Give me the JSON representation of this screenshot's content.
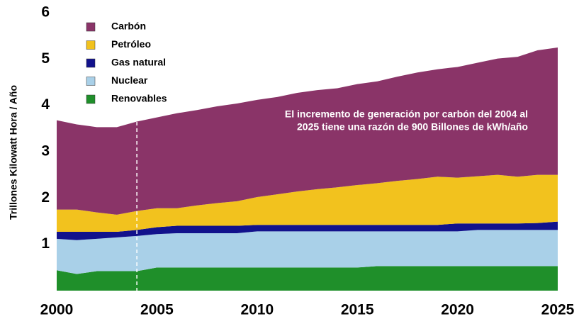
{
  "chart_data": {
    "type": "stacked_area",
    "y_label": "Trillones Kilowatt Hora / Año",
    "annotation": [
      "El incremento de generación por carbón del 2004 al",
      "2025 tiene una razón de 900 Billones de kWh/año"
    ],
    "reference_line_x": 2004,
    "x": [
      2000,
      2001,
      2002,
      2003,
      2004,
      2005,
      2006,
      2007,
      2008,
      2009,
      2010,
      2011,
      2012,
      2013,
      2014,
      2015,
      2016,
      2017,
      2018,
      2019,
      2020,
      2021,
      2022,
      2023,
      2024,
      2025
    ],
    "series": [
      {
        "name": "Carbón",
        "color": "#8a3468",
        "values": [
          1.93,
          1.84,
          1.84,
          1.89,
          1.93,
          1.96,
          2.05,
          2.06,
          2.09,
          2.11,
          2.1,
          2.1,
          2.13,
          2.14,
          2.14,
          2.18,
          2.2,
          2.25,
          2.3,
          2.32,
          2.39,
          2.45,
          2.51,
          2.59,
          2.69,
          2.75
        ]
      },
      {
        "name": "Petróleo",
        "color": "#f2c21e",
        "values": [
          0.48,
          0.48,
          0.42,
          0.37,
          0.41,
          0.41,
          0.38,
          0.44,
          0.49,
          0.53,
          0.6,
          0.66,
          0.72,
          0.77,
          0.81,
          0.86,
          0.9,
          0.95,
          0.99,
          1.04,
          0.99,
          1.02,
          1.05,
          1.01,
          1.04,
          1.01
        ]
      },
      {
        "name": "Gas natural",
        "color": "#12128c",
        "values": [
          0.15,
          0.18,
          0.15,
          0.12,
          0.13,
          0.15,
          0.16,
          0.16,
          0.16,
          0.16,
          0.14,
          0.14,
          0.14,
          0.14,
          0.14,
          0.14,
          0.14,
          0.14,
          0.14,
          0.14,
          0.17,
          0.14,
          0.14,
          0.14,
          0.15,
          0.18
        ]
      },
      {
        "name": "Nuclear",
        "color": "#a9d0e8",
        "values": [
          0.68,
          0.73,
          0.7,
          0.73,
          0.76,
          0.72,
          0.74,
          0.74,
          0.74,
          0.74,
          0.78,
          0.78,
          0.78,
          0.78,
          0.78,
          0.78,
          0.75,
          0.75,
          0.75,
          0.75,
          0.75,
          0.78,
          0.78,
          0.78,
          0.78,
          0.78
        ]
      },
      {
        "name": "Renovables",
        "color": "#1f8f2a",
        "values": [
          0.44,
          0.36,
          0.42,
          0.42,
          0.42,
          0.5,
          0.5,
          0.5,
          0.5,
          0.5,
          0.5,
          0.5,
          0.5,
          0.5,
          0.5,
          0.5,
          0.53,
          0.53,
          0.53,
          0.53,
          0.53,
          0.53,
          0.53,
          0.53,
          0.53,
          0.53
        ]
      }
    ],
    "xlim": [
      2000,
      2025
    ],
    "xticks": [
      2000,
      2005,
      2010,
      2015,
      2020,
      2025
    ],
    "ylim": [
      0,
      6
    ],
    "yticks": [
      1,
      2,
      3,
      4,
      5,
      6
    ]
  }
}
